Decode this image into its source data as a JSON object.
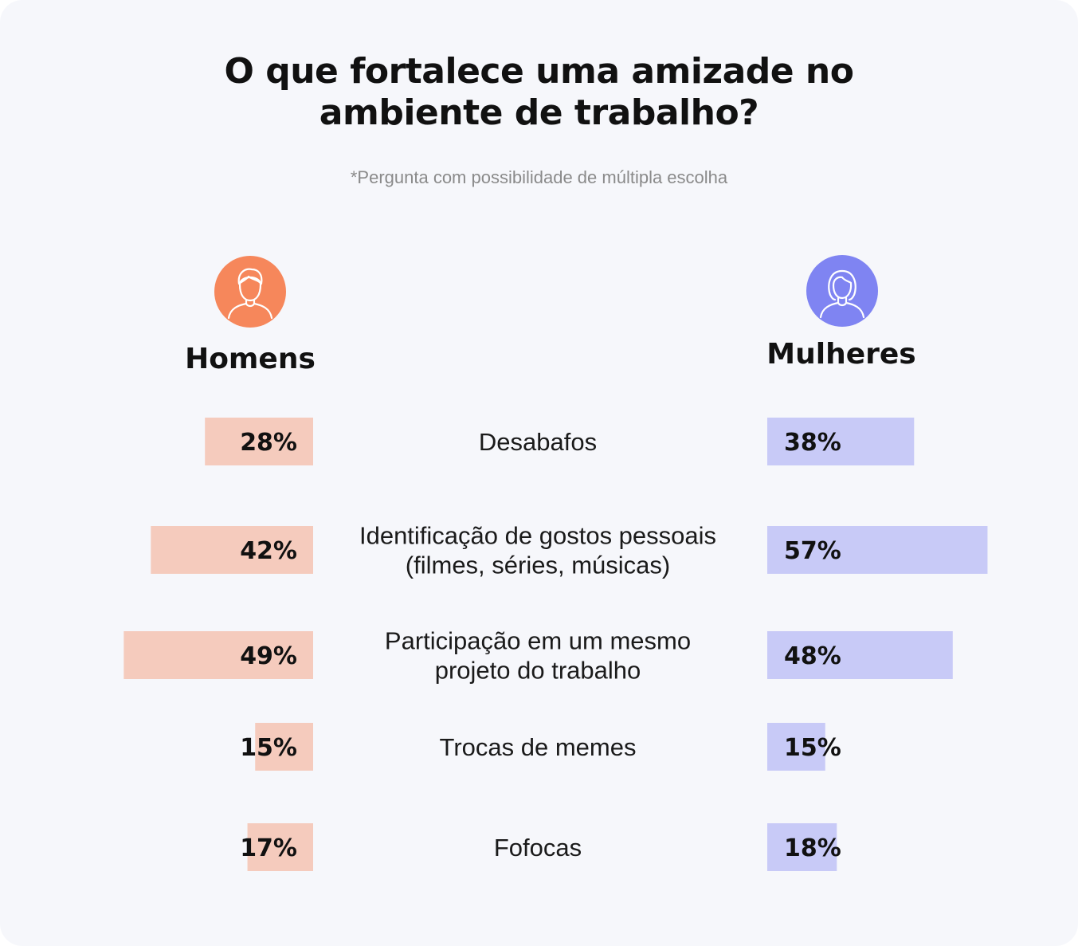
{
  "title_line1": "O que fortalece uma amizade no",
  "title_line2": "ambiente de trabalho?",
  "subtitle": "*Pergunta com possibilidade de múltipla escolha",
  "groups": {
    "men": {
      "label": "Homens",
      "icon": "man-avatar-icon",
      "color": "#f6875b",
      "bar_color": "#f5cbbd"
    },
    "women": {
      "label": "Mulheres",
      "icon": "woman-avatar-icon",
      "color": "#7f84f2",
      "bar_color": "#c8caf7"
    }
  },
  "chart_data": {
    "type": "bar",
    "orientation": "horizontal-diverging",
    "categories": [
      [
        "Desabafos"
      ],
      [
        "Identificação de gostos pessoais",
        "(filmes, séries, músicas)"
      ],
      [
        "Participação em um mesmo",
        "projeto do trabalho"
      ],
      [
        "Trocas de memes"
      ],
      [
        "Fofocas"
      ]
    ],
    "series": [
      {
        "name": "Homens",
        "values": [
          28,
          42,
          49,
          15,
          17
        ],
        "labels": [
          "28%",
          "42%",
          "49%",
          "15%",
          "17%"
        ]
      },
      {
        "name": "Mulheres",
        "values": [
          38,
          57,
          48,
          15,
          18
        ],
        "labels": [
          "38%",
          "57%",
          "48%",
          "15%",
          "18%"
        ]
      }
    ],
    "unit": "%"
  }
}
